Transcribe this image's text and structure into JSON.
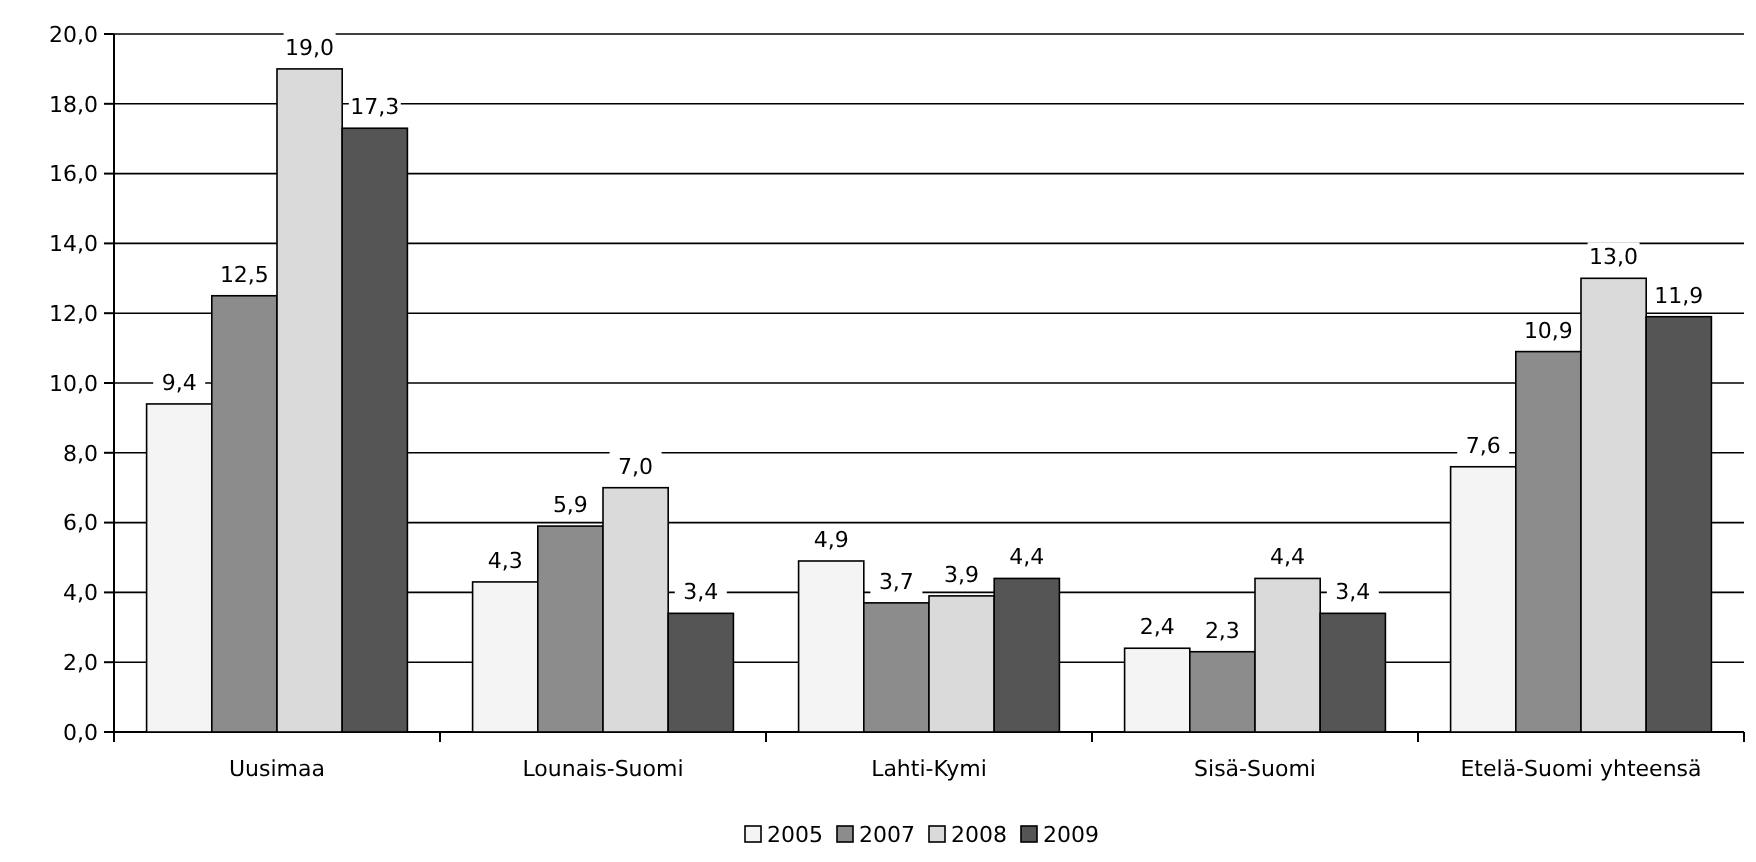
{
  "chart_data": {
    "type": "bar",
    "categories": [
      "Uusimaa",
      "Lounais-Suomi",
      "Lahti-Kymi",
      "Sisä-Suomi",
      "Etelä-Suomi yhteensä"
    ],
    "series": [
      {
        "name": "2005",
        "color": "#f4f4f4",
        "values": [
          9.4,
          4.3,
          4.9,
          2.4,
          7.6
        ],
        "value_labels": [
          "9,4",
          "4,3",
          "4,9",
          "2,4",
          "7,6"
        ]
      },
      {
        "name": "2007",
        "color": "#8c8c8c",
        "values": [
          12.5,
          5.9,
          3.7,
          2.3,
          10.9
        ],
        "value_labels": [
          "12,5",
          "5,9",
          "3,7",
          "2,3",
          "10,9"
        ]
      },
      {
        "name": "2008",
        "color": "#dadada",
        "values": [
          19.0,
          7.0,
          3.9,
          4.4,
          13.0
        ],
        "value_labels": [
          "19,0",
          "7,0",
          "3,9",
          "4,4",
          "13,0"
        ]
      },
      {
        "name": "2009",
        "color": "#555555",
        "values": [
          17.3,
          3.4,
          4.4,
          3.4,
          11.9
        ],
        "value_labels": [
          "17,3",
          "3,4",
          "4,4",
          "3,4",
          "11,9"
        ]
      }
    ],
    "ylim": [
      0,
      20
    ],
    "yticks": [
      {
        "value": 0,
        "label": "0,0"
      },
      {
        "value": 2,
        "label": "2,0"
      },
      {
        "value": 4,
        "label": "4,0"
      },
      {
        "value": 6,
        "label": "6,0"
      },
      {
        "value": 8,
        "label": "8,0"
      },
      {
        "value": 10,
        "label": "10,0"
      },
      {
        "value": 12,
        "label": "12,0"
      },
      {
        "value": 14,
        "label": "14,0"
      },
      {
        "value": 16,
        "label": "16,0"
      },
      {
        "value": 18,
        "label": "18,0"
      },
      {
        "value": 20,
        "label": "20,0"
      }
    ],
    "grid": "y",
    "legend": "bottom"
  }
}
